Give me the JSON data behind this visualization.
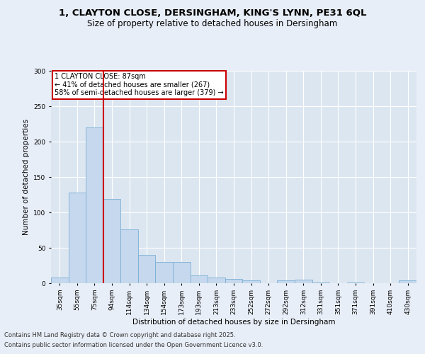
{
  "title_line1": "1, CLAYTON CLOSE, DERSINGHAM, KING'S LYNN, PE31 6QL",
  "title_line2": "Size of property relative to detached houses in Dersingham",
  "xlabel": "Distribution of detached houses by size in Dersingham",
  "ylabel": "Number of detached properties",
  "categories": [
    "35sqm",
    "55sqm",
    "75sqm",
    "94sqm",
    "114sqm",
    "134sqm",
    "154sqm",
    "173sqm",
    "193sqm",
    "213sqm",
    "233sqm",
    "252sqm",
    "272sqm",
    "292sqm",
    "312sqm",
    "331sqm",
    "351sqm",
    "371sqm",
    "391sqm",
    "410sqm",
    "430sqm"
  ],
  "values": [
    8,
    128,
    220,
    119,
    76,
    40,
    30,
    30,
    11,
    8,
    6,
    4,
    0,
    4,
    5,
    1,
    0,
    1,
    0,
    0,
    4
  ],
  "bar_color": "#c5d8ed",
  "bar_edge_color": "#7aafd4",
  "background_color": "#dce6f1",
  "grid_color": "#ffffff",
  "vline_color": "#cc0000",
  "annotation_text": "1 CLAYTON CLOSE: 87sqm\n← 41% of detached houses are smaller (267)\n58% of semi-detached houses are larger (379) →",
  "annotation_box_color": "#cc0000",
  "fig_background": "#e8eef7",
  "footnote1": "Contains HM Land Registry data © Crown copyright and database right 2025.",
  "footnote2": "Contains public sector information licensed under the Open Government Licence v3.0.",
  "ylim": [
    0,
    300
  ],
  "yticks": [
    0,
    50,
    100,
    150,
    200,
    250,
    300
  ]
}
